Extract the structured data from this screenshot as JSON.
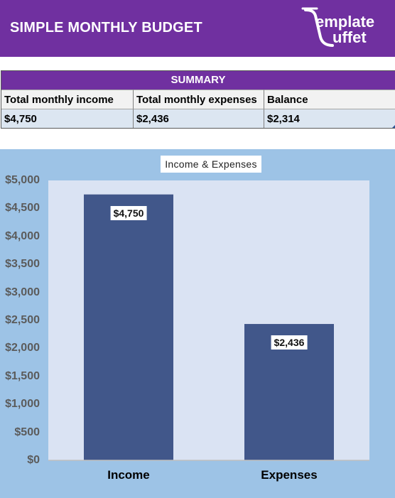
{
  "header": {
    "title": "SIMPLE MONTHLY BUDGET",
    "logo_top": "emplate",
    "logo_bottom": "uffet"
  },
  "summary": {
    "title": "SUMMARY",
    "columns": [
      "Total monthly income",
      "Total monthly expenses",
      "Balance"
    ],
    "values": [
      "$4,750",
      "$2,436",
      "$2,314"
    ]
  },
  "colors": {
    "header_bg": "#7030a0",
    "chart_bg": "#9dc3e6",
    "plot_bg": "#dae3f3",
    "bar": "#41578a"
  },
  "chart_data": {
    "type": "bar",
    "title": "Income & Expenses",
    "categories": [
      "Income",
      "Expenses"
    ],
    "values": [
      4750,
      2436
    ],
    "data_labels": [
      "$4,750",
      "$2,436"
    ],
    "ylim": [
      0,
      5000
    ],
    "ytick_values": [
      0,
      500,
      1000,
      1500,
      2000,
      2500,
      3000,
      3500,
      4000,
      4500,
      5000
    ],
    "ytick_labels": [
      "$0",
      "$500",
      "$1,000",
      "$1,500",
      "$2,000",
      "$2,500",
      "$3,000",
      "$3,500",
      "$4,000",
      "$4,500",
      "$5,000"
    ],
    "grid": false,
    "legend": "none"
  }
}
